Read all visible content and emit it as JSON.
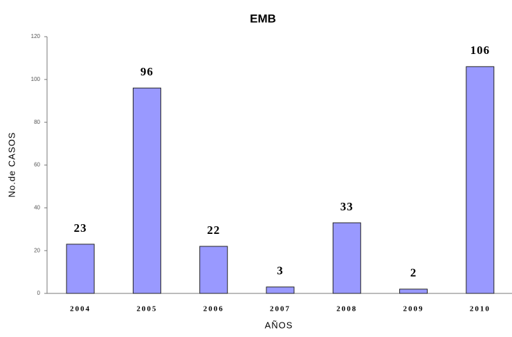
{
  "chart_data": {
    "type": "bar",
    "title": "EMB",
    "x_label": "AÑOS",
    "y_label": "No.de CASOS",
    "categories": [
      "2004",
      "2005",
      "2006",
      "2007",
      "2008",
      "2009",
      "2010"
    ],
    "values": [
      23,
      96,
      22,
      3,
      33,
      2,
      106
    ],
    "color": "#9999ff",
    "ylim": [
      0,
      120
    ],
    "yticks": [
      0,
      20,
      40,
      60,
      80,
      100,
      120
    ],
    "grid": false,
    "data_labels": true
  }
}
